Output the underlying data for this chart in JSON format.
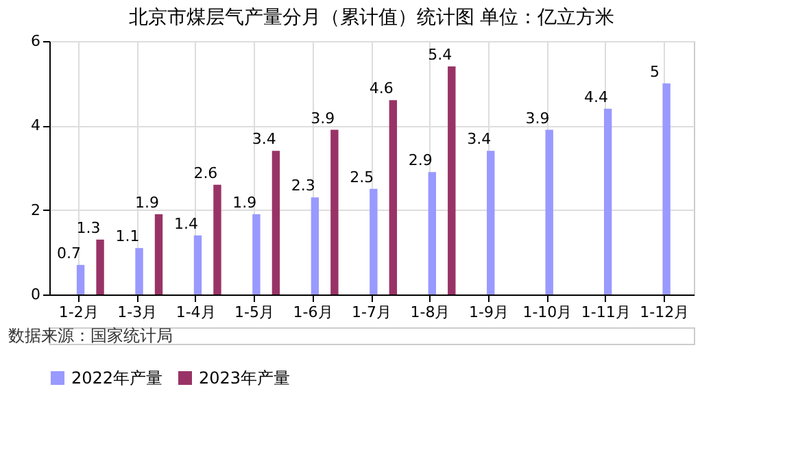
{
  "chart_data": {
    "type": "bar",
    "title": "北京市煤层气产量分月（累计值）统计图 单位：亿立方米",
    "categories": [
      "1-2月",
      "1-3月",
      "1-4月",
      "1-5月",
      "1-6月",
      "1-7月",
      "1-8月",
      "1-9月",
      "1-10月",
      "1-11月",
      "1-12月"
    ],
    "series": [
      {
        "name": "2022年产量",
        "color": "#9999ff",
        "values": [
          0.7,
          1.1,
          1.4,
          1.9,
          2.3,
          2.5,
          2.9,
          3.4,
          3.9,
          4.4,
          5
        ]
      },
      {
        "name": "2023年产量",
        "color": "#993366",
        "values": [
          1.3,
          1.9,
          2.6,
          3.4,
          3.9,
          4.6,
          5.4,
          null,
          null,
          null,
          null
        ]
      }
    ],
    "ylim": [
      0,
      6
    ],
    "yticks": [
      0,
      2,
      4,
      6
    ],
    "grid": true,
    "legend": "bottom",
    "data_labels": true,
    "annotations": [
      "数据来源：国家统计局"
    ]
  }
}
